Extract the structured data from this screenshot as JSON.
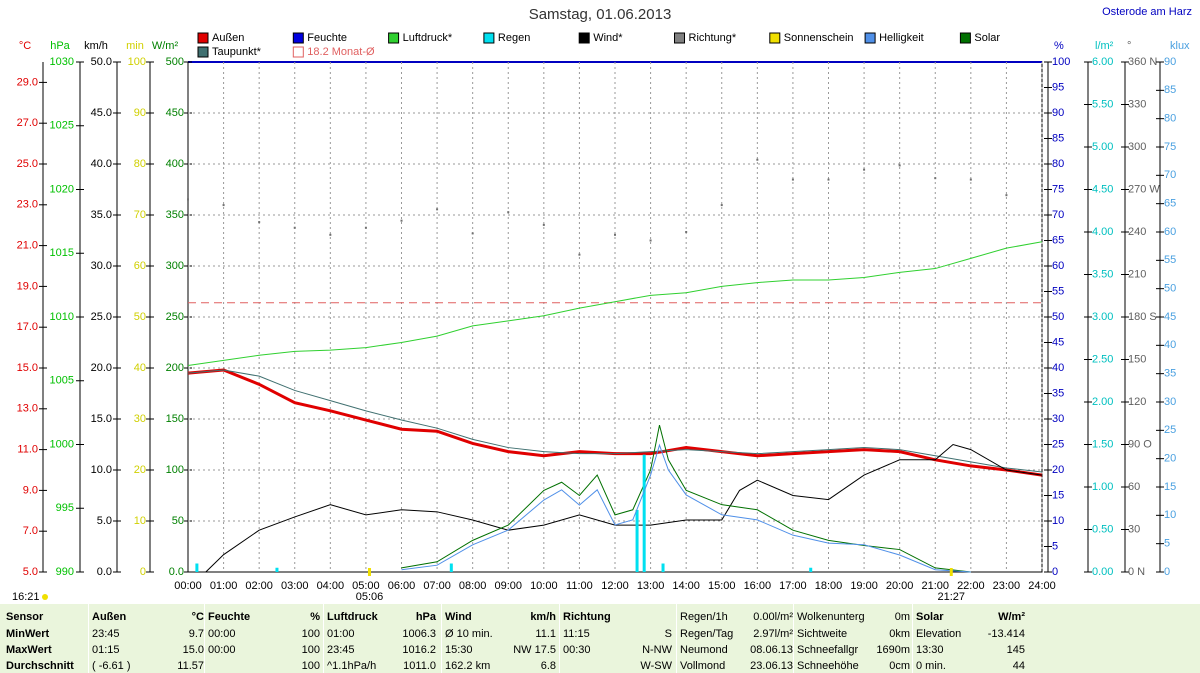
{
  "chart_data": {
    "type": "line",
    "title": "Samstag, 01.06.2013",
    "location": "Osterode am Harz",
    "xlim": [
      0,
      24
    ],
    "xticks": [
      {
        "value": 0,
        "label": "00:00"
      },
      {
        "value": 1,
        "label": "01:00"
      },
      {
        "value": 2,
        "label": "02:00"
      },
      {
        "value": 3,
        "label": "03:00"
      },
      {
        "value": 4,
        "label": "04:00"
      },
      {
        "value": 5,
        "label": "05:00"
      },
      {
        "value": 6,
        "label": "06:00"
      },
      {
        "value": 7,
        "label": "07:00"
      },
      {
        "value": 8,
        "label": "08:00"
      },
      {
        "value": 9,
        "label": "09:00"
      },
      {
        "value": 10,
        "label": "10:00"
      },
      {
        "value": 11,
        "label": "11:00"
      },
      {
        "value": 12,
        "label": "12:00"
      },
      {
        "value": 13,
        "label": "13:00"
      },
      {
        "value": 14,
        "label": "14:00"
      },
      {
        "value": 15,
        "label": "15:00"
      },
      {
        "value": 16,
        "label": "16:00"
      },
      {
        "value": 17,
        "label": "17:00"
      },
      {
        "value": 18,
        "label": "18:00"
      },
      {
        "value": 19,
        "label": "19:00"
      },
      {
        "value": 20,
        "label": "20:00"
      },
      {
        "value": 21,
        "label": "21:00"
      },
      {
        "value": 22,
        "label": "22:00"
      },
      {
        "value": 23,
        "label": "23:00"
      },
      {
        "value": 24,
        "label": "24:00"
      }
    ],
    "grid": true,
    "legend": [
      {
        "name": "Außen",
        "color": "#e00000"
      },
      {
        "name": "Feuchte",
        "color": "#0000e0"
      },
      {
        "name": "Luftdruck*",
        "color": "#30d030"
      },
      {
        "name": "Regen",
        "color": "#00e0f0"
      },
      {
        "name": "Wind*",
        "color": "#000000"
      },
      {
        "name": "Richtung*",
        "color": "#808080"
      },
      {
        "name": "Sonnenschein",
        "color": "#f0e000"
      },
      {
        "name": "Helligkeit",
        "color": "#5090e8"
      },
      {
        "name": "Solar",
        "color": "#007000"
      },
      {
        "name": "Taupunkt*",
        "color": "#407070"
      },
      {
        "name": "18.2 Monat-Ø",
        "color": "#e06060"
      }
    ],
    "monthly_average": 18.2,
    "annotations": {
      "time": "16:21",
      "sunrise": {
        "value": 5.1,
        "label": "05:06"
      },
      "sunset": {
        "value": 21.45,
        "label": "21:27"
      }
    },
    "axes": [
      {
        "label": "°C",
        "color": "#e00000",
        "side": "left",
        "ylim": [
          5,
          30
        ],
        "yticks": [
          {
            "value": 5,
            "label": "5.0"
          },
          {
            "value": 7,
            "label": "7.0"
          },
          {
            "value": 9,
            "label": "9.0"
          },
          {
            "value": 11,
            "label": "11.0"
          },
          {
            "value": 13,
            "label": "13.0"
          },
          {
            "value": 15,
            "label": "15.0"
          },
          {
            "value": 17,
            "label": "17.0"
          },
          {
            "value": 19,
            "label": "19.0"
          },
          {
            "value": 21,
            "label": "21.0"
          },
          {
            "value": 23,
            "label": "23.0"
          },
          {
            "value": 25,
            "label": "25.0"
          },
          {
            "value": 27,
            "label": "27.0"
          },
          {
            "value": 29,
            "label": "29.0"
          }
        ],
        "series": [
          {
            "type": "line",
            "color": "#e00000",
            "width": 3,
            "x": [
              0,
              1,
              2,
              3,
              4,
              5,
              6,
              7,
              8,
              9,
              10,
              11,
              12,
              13,
              14,
              15,
              16,
              17,
              18,
              19,
              20,
              21,
              22,
              23,
              24
            ],
            "values": [
              14.75,
              14.9,
              14.2,
              13.3,
              12.9,
              12.45,
              12.0,
              11.9,
              11.3,
              10.9,
              10.7,
              10.9,
              10.8,
              10.8,
              11.1,
              10.9,
              10.7,
              10.8,
              10.9,
              11.0,
              10.9,
              10.5,
              10.2,
              10.0,
              9.75
            ]
          },
          {
            "type": "line",
            "color": "#407070",
            "width": 1,
            "x": [
              0,
              1,
              2,
              3,
              4,
              5,
              6,
              7,
              8,
              9,
              10,
              11,
              12,
              13,
              14,
              15,
              16,
              17,
              18,
              19,
              20,
              21,
              22,
              23,
              24
            ],
            "values": [
              14.75,
              14.9,
              14.6,
              13.9,
              13.4,
              12.9,
              12.45,
              12.05,
              11.5,
              11.1,
              10.9,
              10.8,
              10.8,
              10.9,
              11.0,
              10.9,
              10.8,
              10.9,
              11.0,
              11.1,
              11.0,
              10.7,
              10.4,
              10.1,
              9.9
            ]
          }
        ]
      },
      {
        "label": "hPa",
        "color": "#00c000",
        "side": "left",
        "ylim": [
          990,
          1030
        ],
        "yticks": [
          990,
          995,
          1000,
          1005,
          1010,
          1015,
          1020,
          1025,
          1030
        ],
        "series": [
          {
            "type": "line",
            "color": "#30d030",
            "width": 1,
            "x": [
              0,
              1,
              2,
              3,
              4,
              5,
              6,
              7,
              8,
              9,
              10,
              11,
              12,
              13,
              14,
              15,
              16,
              17,
              18,
              19,
              20,
              21,
              22,
              23,
              24
            ],
            "values": [
              1006.2,
              1006.6,
              1007.0,
              1007.3,
              1007.4,
              1007.6,
              1008.0,
              1008.5,
              1009.3,
              1009.7,
              1010.1,
              1010.7,
              1011.2,
              1011.7,
              1011.9,
              1012.4,
              1012.7,
              1012.9,
              1012.9,
              1013.1,
              1013.5,
              1013.8,
              1014.6,
              1015.4,
              1015.9
            ]
          }
        ]
      },
      {
        "label": "km/h",
        "color": "#000000",
        "side": "left",
        "ylim": [
          0,
          50
        ],
        "yticks": [
          {
            "value": 0,
            "label": "0.0"
          },
          {
            "value": 5,
            "label": "5.0"
          },
          {
            "value": 10,
            "label": "10.0"
          },
          {
            "value": 15,
            "label": "15.0"
          },
          {
            "value": 20,
            "label": "20.0"
          },
          {
            "value": 25,
            "label": "25.0"
          },
          {
            "value": 30,
            "label": "30.0"
          },
          {
            "value": 35,
            "label": "35.0"
          },
          {
            "value": 40,
            "label": "40.0"
          },
          {
            "value": 45,
            "label": "45.0"
          },
          {
            "value": 50,
            "label": "50.0"
          }
        ],
        "series": [
          {
            "type": "line",
            "color": "#000000",
            "width": 1,
            "x": [
              0.5,
              1,
              2,
              3,
              4,
              5,
              6,
              7,
              8,
              9,
              10,
              11,
              12,
              13,
              14,
              15,
              15.5,
              16,
              17,
              18,
              19,
              20,
              21,
              21.5,
              22,
              23,
              24
            ],
            "values": [
              0,
              1.7,
              4.1,
              5.4,
              6.6,
              5.6,
              6.1,
              5.9,
              5.1,
              4.1,
              4.6,
              5.6,
              4.6,
              4.6,
              5.1,
              5.1,
              8.0,
              9.0,
              7.5,
              7.1,
              9.5,
              11.0,
              11.0,
              12.5,
              12.0,
              10.0,
              9.5
            ]
          }
        ]
      },
      {
        "label": "min",
        "color": "#d0d000",
        "side": "left",
        "ylim": [
          0,
          100
        ],
        "yticks": [
          0,
          10,
          20,
          30,
          40,
          50,
          60,
          70,
          80,
          90,
          100
        ],
        "series": []
      },
      {
        "label": "W/m²",
        "color": "#008000",
        "side": "left",
        "ylim": [
          0,
          500
        ],
        "yticks": [
          {
            "value": 0,
            "label": "0.0"
          },
          50,
          100,
          150,
          200,
          250,
          300,
          350,
          400,
          450,
          500
        ],
        "grid": true,
        "series": [
          {
            "type": "line",
            "color": "#007000",
            "width": 1,
            "x": [
              6,
              7,
              8,
              9,
              10,
              10.5,
              11,
              11.5,
              12,
              12.5,
              13,
              13.25,
              13.5,
              14,
              15,
              16,
              17,
              18,
              19,
              20,
              21,
              22
            ],
            "values": [
              4,
              10,
              31,
              46,
              80,
              88,
              75,
              95,
              56,
              61,
              100,
              144,
              110,
              80,
              66,
              61,
              41,
              31,
              26,
              22,
              4,
              0
            ]
          }
        ]
      },
      {
        "label": "%",
        "color": "#0000c0",
        "side": "right",
        "ylim": [
          0,
          100
        ],
        "yticks": [
          0,
          5,
          10,
          15,
          20,
          25,
          30,
          35,
          40,
          45,
          50,
          55,
          60,
          65,
          70,
          75,
          80,
          85,
          90,
          95,
          100
        ],
        "series": []
      },
      {
        "label": "l/m²",
        "color": "#00c0c0",
        "side": "right",
        "ylim": [
          0,
          6
        ],
        "yticks": [
          {
            "value": 0,
            "label": "0.00"
          },
          {
            "value": 0.5,
            "label": "0.50"
          },
          {
            "value": 1,
            "label": "1.00"
          },
          {
            "value": 1.5,
            "label": "1.50"
          },
          {
            "value": 2,
            "label": "2.00"
          },
          {
            "value": 2.5,
            "label": "2.50"
          },
          {
            "value": 3,
            "label": "3.00"
          },
          {
            "value": 3.5,
            "label": "3.50"
          },
          {
            "value": 4,
            "label": "4.00"
          },
          {
            "value": 4.5,
            "label": "4.50"
          },
          {
            "value": 5,
            "label": "5.00"
          },
          {
            "value": 5.5,
            "label": "5.50"
          },
          {
            "value": 6,
            "label": "6.00"
          }
        ],
        "series": [
          {
            "type": "bar",
            "color": "#00e0f0",
            "x": [
              0.25,
              2.5,
              7.4,
              12.62,
              12.82,
              13.35,
              17.5
            ],
            "values": [
              0.1,
              0.05,
              0.1,
              0.73,
              1.38,
              0.1,
              0.05
            ]
          }
        ]
      },
      {
        "label": "°",
        "color": "#606060",
        "side": "right",
        "ylim": [
          0,
          360
        ],
        "yticks": [
          {
            "value": 0,
            "label": "0 N"
          },
          30,
          60,
          {
            "value": 90,
            "label": "90 O"
          },
          120,
          150,
          {
            "value": 180,
            "label": "180 S"
          },
          210,
          240,
          {
            "value": 270,
            "label": "270 W"
          },
          300,
          330,
          {
            "value": 360,
            "label": "360 N"
          }
        ],
        "series": [
          {
            "type": "dots",
            "color": "#707070",
            "x": [
              0,
              1,
              2,
              3,
              4,
              5,
              6,
              7,
              8,
              9,
              10,
              11,
              12,
              13,
              14,
              15,
              16,
              17,
              18,
              19,
              20,
              21,
              22,
              23,
              24
            ],
            "values": [
              263,
              259,
              247,
              243,
              238,
              243,
              248,
              256,
              239,
              254,
              245,
              224,
              238,
              234,
              240,
              259,
              291,
              277,
              277,
              284,
              287,
              278,
              277,
              266,
              259
            ]
          }
        ]
      },
      {
        "label": "klux",
        "color": "#4aa0e0",
        "side": "right",
        "ylim": [
          0,
          90
        ],
        "yticks": [
          0,
          5,
          10,
          15,
          20,
          25,
          30,
          35,
          40,
          45,
          50,
          55,
          60,
          65,
          70,
          75,
          80,
          85,
          90
        ],
        "series": [
          {
            "type": "line",
            "color": "#5090e8",
            "width": 1,
            "x": [
              6,
              7,
              8,
              9,
              10,
              10.5,
              11,
              11.5,
              12,
              12.5,
              13,
              13.25,
              13.5,
              14,
              15,
              16,
              17,
              18,
              19,
              20,
              21,
              22
            ],
            "values": [
              0.4,
              1.2,
              4.8,
              7.4,
              12.7,
              14.5,
              11.8,
              14.5,
              8.3,
              9.2,
              17.1,
              22.4,
              18,
              13.6,
              10.1,
              9.2,
              6.5,
              5.1,
              4.8,
              3.0,
              0.4,
              0
            ]
          }
        ]
      }
    ]
  },
  "table": {
    "row_labels": [
      "Sensor",
      "MinWert",
      "MaxWert",
      "Durchschnitt"
    ],
    "groups": [
      {
        "header": [
          "Außen",
          "°C"
        ],
        "rows": [
          [
            "23:45",
            "9.7"
          ],
          [
            "01:15",
            "15.0"
          ],
          [
            "( -6.61 )",
            "11.57"
          ]
        ]
      },
      {
        "header": [
          "Feuchte",
          "%"
        ],
        "rows": [
          [
            "00:00",
            "100"
          ],
          [
            "00:00",
            "100"
          ],
          [
            "100"
          ]
        ]
      },
      {
        "header": [
          "Luftdruck",
          "hPa"
        ],
        "rows": [
          [
            "01:00",
            "1006.3"
          ],
          [
            "23:45",
            "1016.2"
          ],
          [
            "^1.1hPa/h",
            "1011.0"
          ]
        ]
      },
      {
        "header": [
          "Wind",
          "km/h"
        ],
        "rows": [
          [
            "Ø 10 min.",
            "11.1"
          ],
          [
            "15:30",
            "NW 17.5"
          ],
          [
            "162.2 km",
            "6.8"
          ]
        ]
      },
      {
        "header": [
          "Richtung"
        ],
        "rows": [
          [
            "11:15",
            "S"
          ],
          [
            "00:30",
            "N-NW"
          ],
          [
            "W-SW"
          ]
        ]
      },
      {
        "rows": [
          [
            "Regen/1h",
            "0.00l/m²"
          ],
          [
            "Regen/Tag",
            "2.97l/m²"
          ],
          [
            "Neumond",
            "08.06.13"
          ],
          [
            "Vollmond",
            "23.06.13"
          ]
        ]
      },
      {
        "rows": [
          [
            "Wolkenunterg",
            "0m"
          ],
          [
            "Sichtweite",
            "0km"
          ],
          [
            "Schneefallgr",
            "1690m"
          ],
          [
            "Schneehöhe",
            "0cm"
          ]
        ]
      },
      {
        "header": [
          "Solar",
          "W/m²"
        ],
        "rows": [
          [
            "Elevation",
            "-13.414"
          ],
          [
            "13:30",
            "145"
          ],
          [
            "0 min.",
            "44"
          ]
        ]
      }
    ]
  }
}
